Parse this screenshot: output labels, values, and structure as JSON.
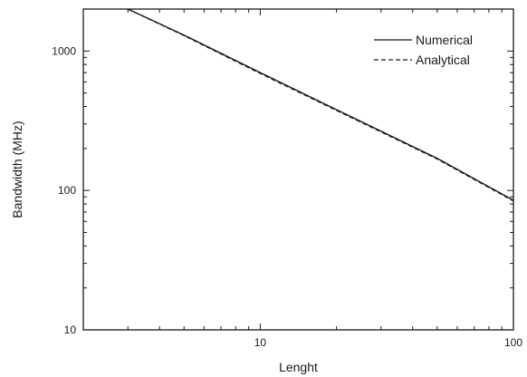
{
  "chart_data": {
    "type": "line",
    "title": "",
    "xlabel": "Lenght",
    "ylabel": "Bandwidth (MHz)",
    "xscale": "log",
    "yscale": "log",
    "xlim": [
      2,
      100
    ],
    "ylim": [
      10,
      2000
    ],
    "grid": false,
    "legend_position": "top-right",
    "x_ticks": [
      {
        "value": 10,
        "label": "10"
      },
      {
        "value": 100,
        "label": "100"
      }
    ],
    "y_ticks": [
      {
        "value": 10,
        "label": "10"
      },
      {
        "value": 100,
        "label": "100"
      },
      {
        "value": 1000,
        "label": "1000"
      }
    ],
    "series": [
      {
        "name": "Numerical",
        "style": "solid",
        "color": "#1a1a1a",
        "x": [
          3,
          5,
          10,
          20,
          50,
          100
        ],
        "y": [
          2000,
          1300,
          700,
          380,
          170,
          85
        ]
      },
      {
        "name": "Analytical",
        "style": "dashed",
        "color": "#1a1a1a",
        "x": [
          3,
          5,
          10,
          20,
          50,
          100
        ],
        "y": [
          2000,
          1290,
          690,
          375,
          168,
          84
        ]
      }
    ]
  }
}
